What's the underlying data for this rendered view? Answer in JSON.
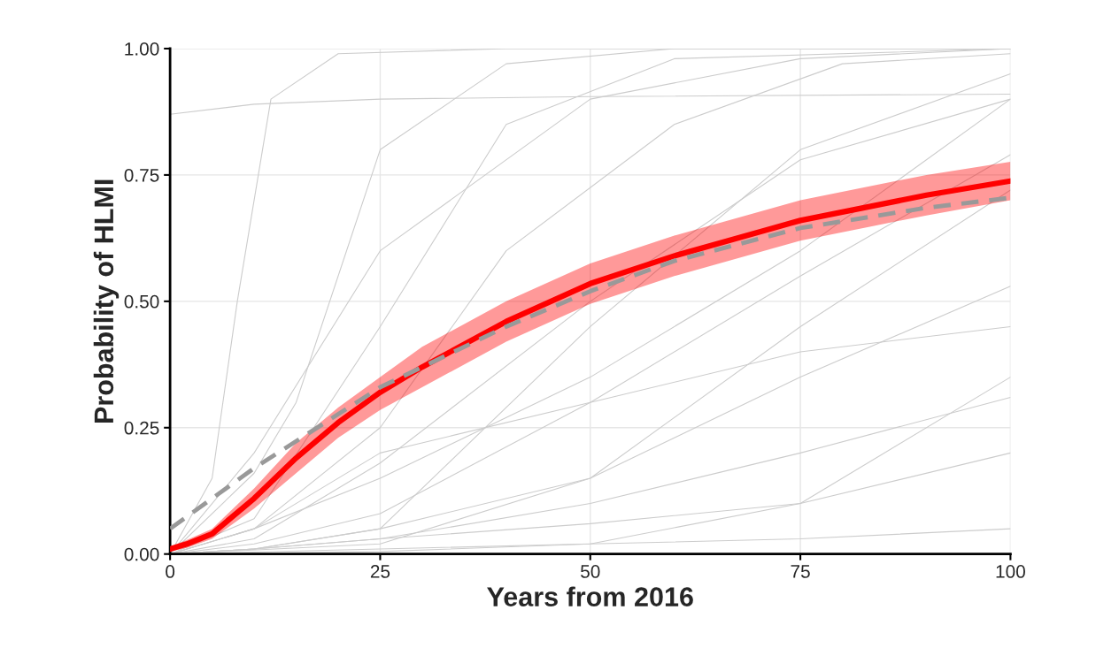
{
  "chart_data": {
    "type": "line",
    "xlabel": "Years from 2016",
    "ylabel": "Probability of HLMI",
    "xlim": [
      0,
      100
    ],
    "xticks": [
      0,
      25,
      50,
      75,
      100
    ],
    "ylim": [
      0,
      1
    ],
    "yticks": [
      {
        "value": 0,
        "label": "0.00"
      },
      {
        "value": 0.25,
        "label": "0.25"
      },
      {
        "value": 0.5,
        "label": "0.50"
      },
      {
        "value": 0.75,
        "label": "0.75"
      },
      {
        "value": 1,
        "label": "1.00"
      }
    ],
    "grid": true,
    "legend": false,
    "series": [
      {
        "color": "#cccccc",
        "x": [
          0,
          5,
          8,
          12,
          20,
          40,
          100
        ],
        "values": [
          0,
          0.15,
          0.5,
          0.9,
          0.99,
          1,
          1
        ]
      },
      {
        "color": "#cccccc",
        "x": [
          0,
          10,
          25,
          50,
          100
        ],
        "values": [
          0.87,
          0.89,
          0.9,
          0.905,
          0.91
        ]
      },
      {
        "color": "#cccccc",
        "x": [
          0,
          10,
          15,
          25,
          40,
          60,
          100
        ],
        "values": [
          0,
          0.16,
          0.3,
          0.8,
          0.97,
          1,
          1
        ]
      },
      {
        "color": "#cccccc",
        "x": [
          0,
          10,
          25,
          40,
          60,
          100
        ],
        "values": [
          0,
          0.07,
          0.45,
          0.85,
          0.98,
          1
        ]
      },
      {
        "color": "#cccccc",
        "x": [
          0,
          10,
          25,
          40,
          60,
          80,
          100
        ],
        "values": [
          0,
          0.05,
          0.25,
          0.6,
          0.85,
          0.97,
          0.99
        ]
      },
      {
        "color": "#cccccc",
        "x": [
          0,
          10,
          25,
          50,
          75,
          100
        ],
        "values": [
          0,
          0.05,
          0.15,
          0.35,
          0.6,
          0.9
        ]
      },
      {
        "color": "#cccccc",
        "x": [
          0,
          10,
          25,
          50,
          75,
          100
        ],
        "values": [
          0,
          0.02,
          0.08,
          0.3,
          0.55,
          0.79
        ]
      },
      {
        "color": "#cccccc",
        "x": [
          0,
          10,
          25,
          50,
          75,
          100
        ],
        "values": [
          0,
          0.01,
          0.05,
          0.15,
          0.35,
          0.53
        ]
      },
      {
        "color": "#cccccc",
        "x": [
          0,
          10,
          25,
          50,
          75,
          100
        ],
        "values": [
          0,
          0.01,
          0.03,
          0.1,
          0.2,
          0.31
        ]
      },
      {
        "color": "#cccccc",
        "x": [
          0,
          10,
          25,
          50,
          75,
          100
        ],
        "values": [
          0,
          0.01,
          0.03,
          0.06,
          0.1,
          0.2
        ]
      },
      {
        "color": "#cccccc",
        "x": [
          0,
          25,
          50,
          75,
          100
        ],
        "values": [
          0,
          0.01,
          0.02,
          0.03,
          0.05
        ]
      },
      {
        "color": "#cccccc",
        "x": [
          0,
          10,
          25,
          50,
          75,
          100
        ],
        "values": [
          0,
          0.2,
          0.6,
          0.9,
          0.98,
          1
        ]
      },
      {
        "color": "#cccccc",
        "x": [
          0,
          10,
          25,
          50,
          75,
          100
        ],
        "values": [
          0,
          0.01,
          0.05,
          0.45,
          0.8,
          0.95
        ]
      },
      {
        "color": "#cccccc",
        "x": [
          0,
          10,
          25,
          50,
          75,
          100
        ],
        "values": [
          0,
          0.03,
          0.18,
          0.5,
          0.78,
          0.9
        ]
      },
      {
        "color": "#cccccc",
        "x": [
          0,
          25,
          50,
          75,
          100
        ],
        "values": [
          0,
          0.02,
          0.15,
          0.45,
          0.72
        ]
      },
      {
        "color": "#cccccc",
        "x": [
          0,
          10,
          25,
          50,
          75,
          100
        ],
        "values": [
          0,
          0.05,
          0.2,
          0.3,
          0.4,
          0.45
        ]
      },
      {
        "color": "#cccccc",
        "x": [
          0,
          25,
          50,
          75,
          100
        ],
        "values": [
          0,
          0.005,
          0.02,
          0.1,
          0.35
        ]
      },
      {
        "color": "#ff0000",
        "x": [
          0,
          2,
          5,
          10,
          15,
          20,
          25,
          30,
          40,
          50,
          60,
          75,
          90,
          100
        ],
        "values": [
          0.01,
          0.02,
          0.04,
          0.11,
          0.19,
          0.26,
          0.32,
          0.37,
          0.46,
          0.535,
          0.59,
          0.66,
          0.71,
          0.738
        ],
        "lower": [
          0.005,
          0.012,
          0.03,
          0.09,
          0.16,
          0.23,
          0.285,
          0.33,
          0.42,
          0.495,
          0.55,
          0.62,
          0.67,
          0.7
        ],
        "upper": [
          0.015,
          0.028,
          0.05,
          0.13,
          0.22,
          0.29,
          0.35,
          0.41,
          0.5,
          0.575,
          0.63,
          0.7,
          0.75,
          0.776
        ]
      },
      {
        "color": "#999999",
        "line_style": "dashed",
        "x": [
          0,
          10,
          25,
          40,
          50,
          60,
          75,
          90,
          100
        ],
        "values": [
          0.05,
          0.17,
          0.33,
          0.45,
          0.52,
          0.58,
          0.645,
          0.685,
          0.705
        ]
      }
    ]
  }
}
